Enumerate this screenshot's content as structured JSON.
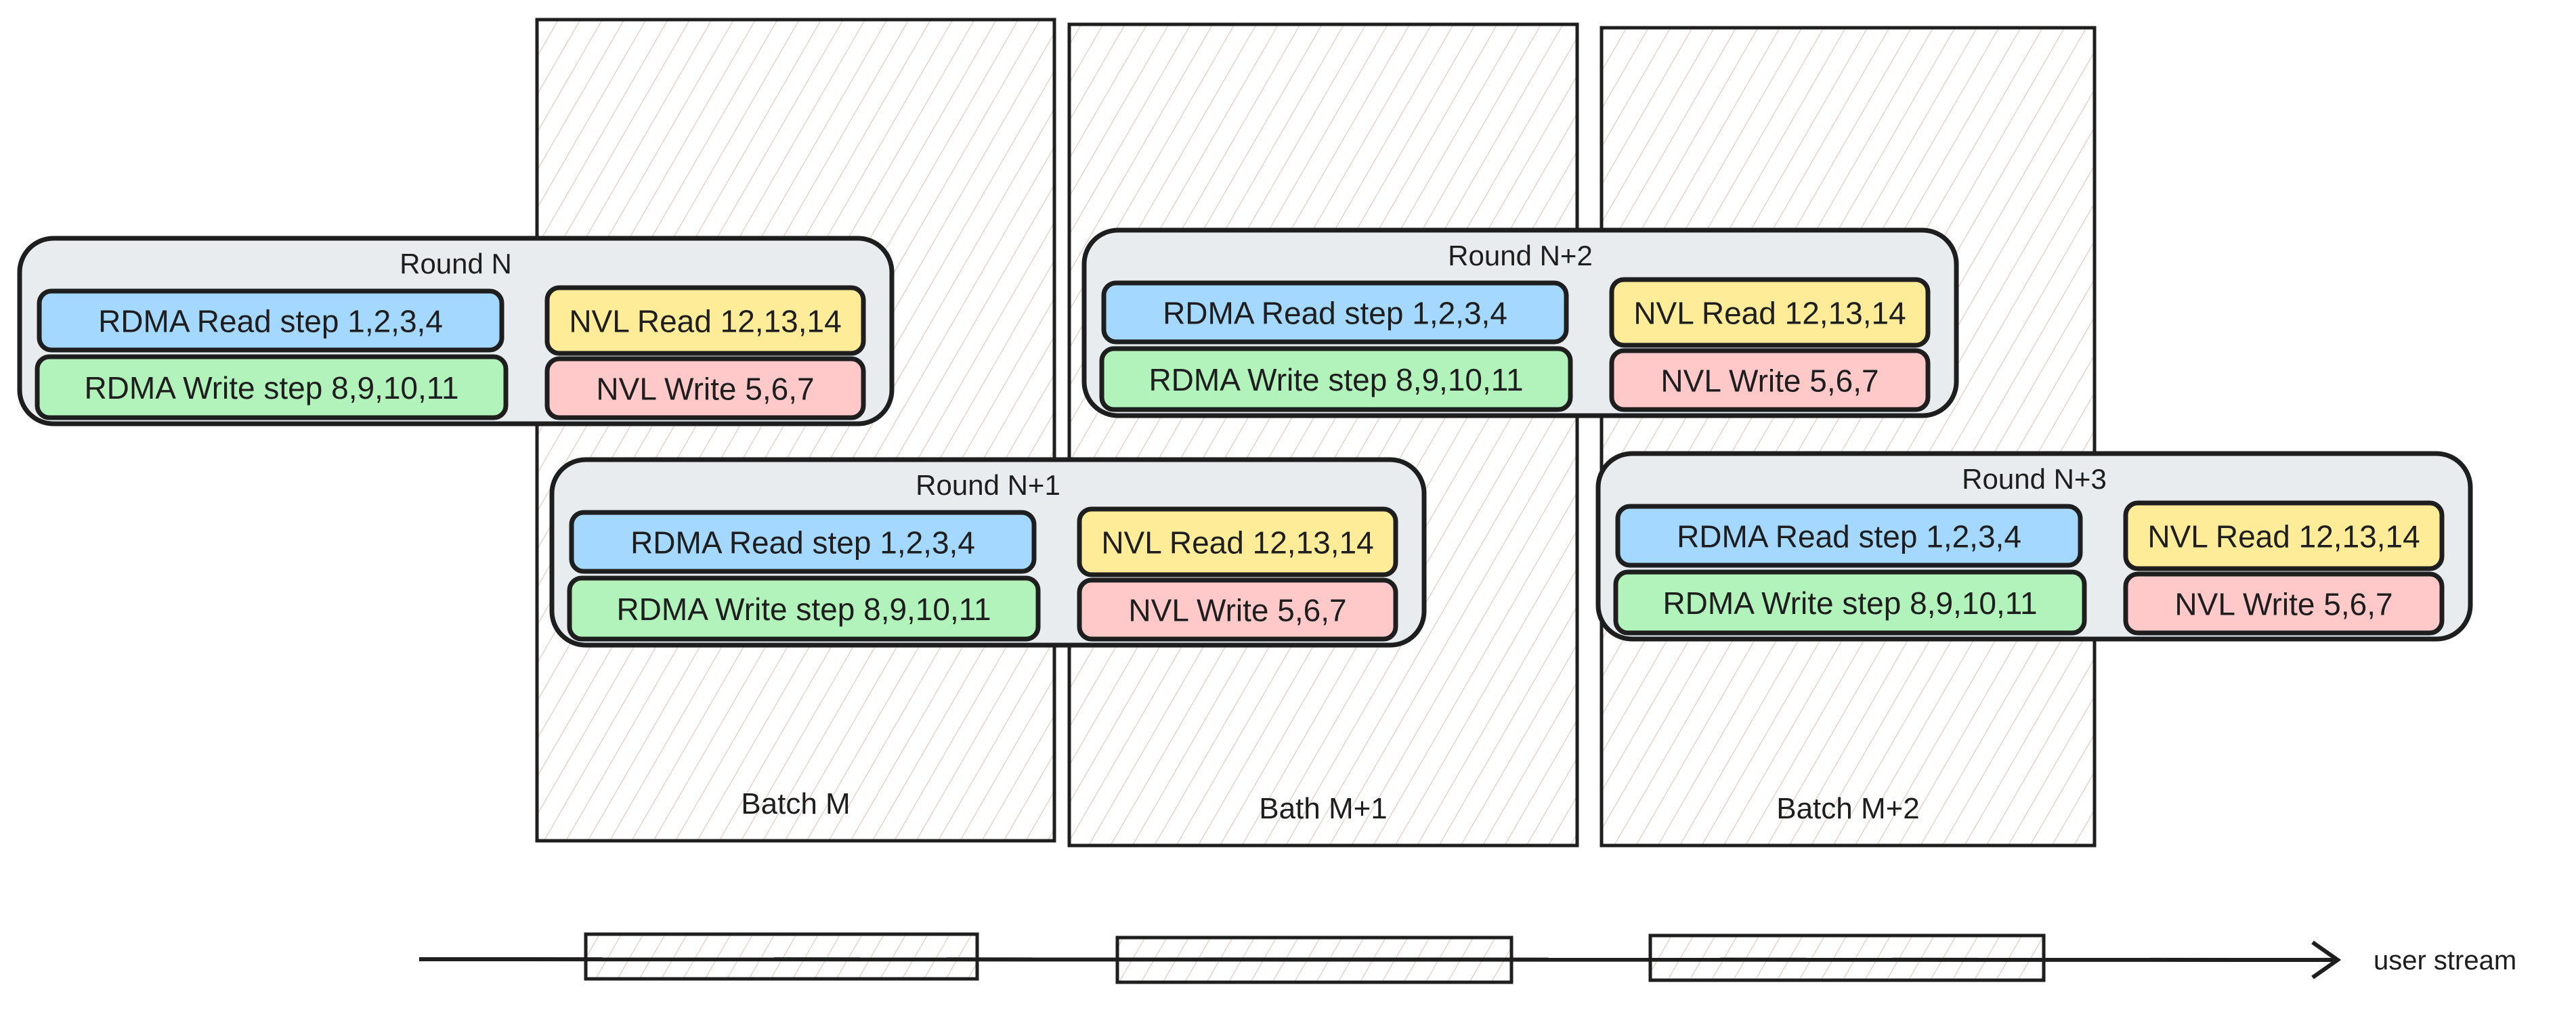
{
  "colors": {
    "stroke": "#1e1e1e",
    "round_bg": "#e9ecef",
    "rdma_read": "#a5d8ff",
    "rdma_write": "#b2f2bb",
    "nvl_read": "#ffec99",
    "nvl_write": "#ffc9c9",
    "hatch": "#e6d3cd"
  },
  "batches": [
    {
      "label": "Batch M"
    },
    {
      "label": "Bath M+1"
    },
    {
      "label": "Batch M+2"
    }
  ],
  "rounds": [
    {
      "title": "Round N",
      "rdma_read": "RDMA Read step 1,2,3,4",
      "rdma_write": "RDMA Write step 8,9,10,11",
      "nvl_read": "NVL Read 12,13,14",
      "nvl_write": "NVL Write 5,6,7"
    },
    {
      "title": "Round N+1",
      "rdma_read": "RDMA Read step 1,2,3,4",
      "rdma_write": "RDMA Write step 8,9,10,11",
      "nvl_read": "NVL Read 12,13,14",
      "nvl_write": "NVL Write 5,6,7"
    },
    {
      "title": "Round N+2",
      "rdma_read": "RDMA Read step 1,2,3,4",
      "rdma_write": "RDMA Write step 8,9,10,11",
      "nvl_read": "NVL Read 12,13,14",
      "nvl_write": "NVL Write 5,6,7"
    },
    {
      "title": "Round N+3",
      "rdma_read": "RDMA Read step 1,2,3,4",
      "rdma_write": "RDMA Write step 8,9,10,11",
      "nvl_read": "NVL Read 12,13,14",
      "nvl_write": "NVL Write 5,6,7"
    }
  ],
  "stream": {
    "label": "user stream"
  }
}
